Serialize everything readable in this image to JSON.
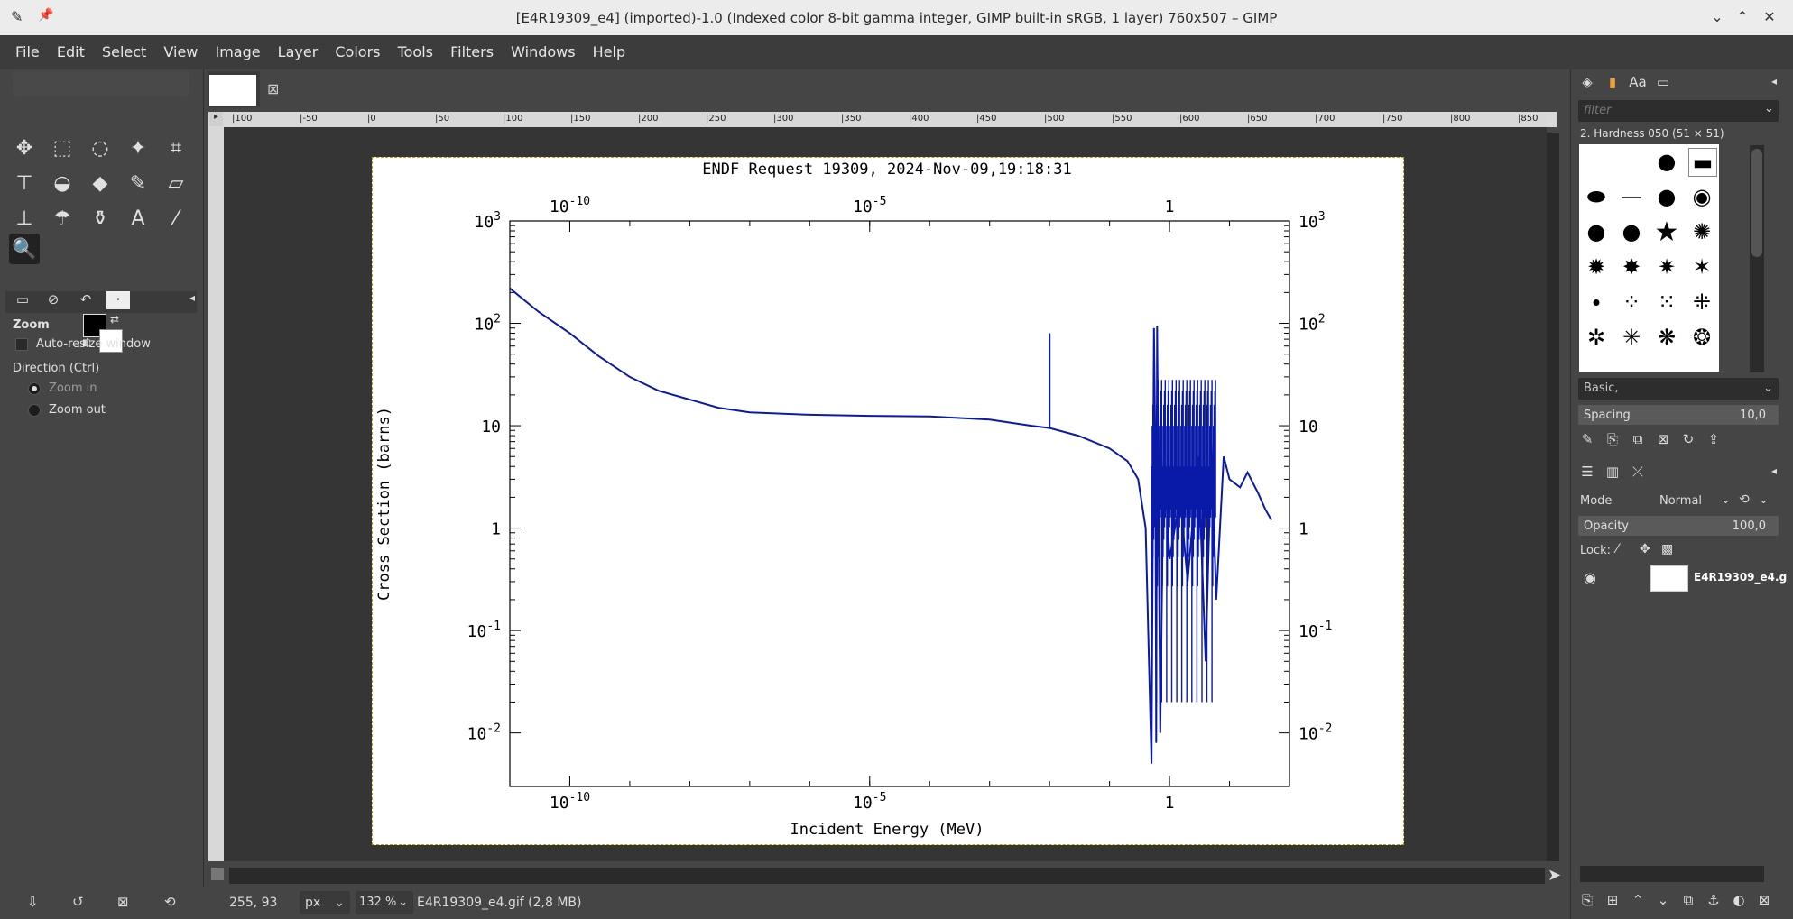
{
  "window": {
    "title": "[E4R19309_e4] (imported)-1.0 (Indexed color 8-bit gamma integer, GIMP built-in sRGB, 1 layer) 760x507 – GIMP",
    "minimize_glyph": "⌄",
    "maximize_glyph": "⌃",
    "close_glyph": "✕"
  },
  "menu": [
    "File",
    "Edit",
    "Select",
    "View",
    "Image",
    "Layer",
    "Colors",
    "Tools",
    "Filters",
    "Windows",
    "Help"
  ],
  "toolbox": {
    "tools": [
      {
        "name": "move-tool-icon",
        "glyph": "✥"
      },
      {
        "name": "rect-select-tool-icon",
        "glyph": "⬚"
      },
      {
        "name": "lasso-tool-icon",
        "glyph": "◌"
      },
      {
        "name": "fuzzy-select-tool-icon",
        "glyph": "✦"
      },
      {
        "name": "crop-tool-icon",
        "glyph": "⌗"
      },
      {
        "name": "transform-tool-icon",
        "glyph": "⊤"
      },
      {
        "name": "warp-tool-icon",
        "glyph": "◒"
      },
      {
        "name": "bucket-fill-tool-icon",
        "glyph": "◆"
      },
      {
        "name": "paintbrush-tool-icon",
        "glyph": "✎"
      },
      {
        "name": "eraser-tool-icon",
        "glyph": "▱"
      },
      {
        "name": "clone-tool-icon",
        "glyph": "⊥"
      },
      {
        "name": "smudge-tool-icon",
        "glyph": "☂"
      },
      {
        "name": "dodge-tool-icon",
        "glyph": "⚱"
      },
      {
        "name": "text-tool-icon",
        "glyph": "A"
      },
      {
        "name": "color-picker-tool-icon",
        "glyph": "⁄"
      },
      {
        "name": "zoom-tool-icon",
        "glyph": "🔍"
      }
    ]
  },
  "tool_options": {
    "title": "Zoom",
    "auto_resize": "Auto-resize window",
    "direction_label": "Direction  (Ctrl)",
    "zoom_in": "Zoom in",
    "zoom_out": "Zoom out"
  },
  "rulers": {
    "top": [
      "|100",
      "|-50",
      "|0",
      "|50",
      "|100",
      "|150",
      "|200",
      "|250",
      "|300",
      "|350",
      "|400",
      "|450",
      "|500",
      "|550",
      "|600",
      "|650",
      "|700",
      "|750",
      "|800",
      "|850"
    ]
  },
  "chart_data": {
    "type": "line",
    "title": "ENDF Request 19309, 2024-Nov-09,19:18:31",
    "xlabel": "Incident Energy (MeV)",
    "ylabel": "Cross Section (barns)",
    "x_scale": "log",
    "y_scale": "log",
    "xticks": [
      "10-10",
      "10-5",
      "1"
    ],
    "yticks": [
      "10-2",
      "10-1",
      "1",
      "10",
      "102",
      "103"
    ],
    "xlim": [
      1e-11,
      100
    ],
    "ylim": [
      0.003,
      1000
    ],
    "color": "#0a1aa8",
    "series": [
      {
        "x": [
          1e-11,
          3e-11,
          1e-10,
          3e-10,
          1e-09,
          3e-09,
          1e-08,
          3e-08,
          1e-07,
          1e-06,
          1e-05,
          0.0001,
          0.001,
          0.005,
          0.01,
          0.01,
          0.01,
          0.03,
          0.1,
          0.2,
          0.3,
          0.4,
          0.5,
          0.55,
          0.58,
          0.6,
          0.62,
          0.65,
          0.7,
          0.8,
          1.0,
          1.5,
          2,
          3,
          4,
          5,
          6,
          8,
          10,
          15,
          20,
          30,
          40,
          50
        ],
        "y": [
          220,
          130,
          80,
          48,
          30,
          22,
          18,
          15,
          13.5,
          12.8,
          12.5,
          12.3,
          11.5,
          10,
          9.5,
          80,
          9.5,
          8,
          6,
          4.5,
          3,
          1,
          0.005,
          90,
          5,
          0.008,
          95,
          4,
          0.01,
          6,
          0.5,
          2,
          0.3,
          5,
          0.05,
          7,
          0.2,
          5,
          3,
          2.5,
          3.5,
          2.2,
          1.5,
          1.2
        ]
      }
    ]
  },
  "status": {
    "coords": "255, 93",
    "unit": "px",
    "zoom": "132 %",
    "file": "E4R19309_e4.gif (2,8 MB)"
  },
  "brushes": {
    "filter_placeholder": "filter",
    "selected": "2. Hardness 050 (51 × 51)",
    "category": "Basic,",
    "spacing_label": "Spacing",
    "spacing_value": "10,0"
  },
  "layers": {
    "mode_label": "Mode",
    "mode_value": "Normal",
    "opacity_label": "Opacity",
    "opacity_value": "100,0",
    "lock_label": "Lock:",
    "items": [
      {
        "name": "E4R19309_e4.g"
      }
    ]
  }
}
